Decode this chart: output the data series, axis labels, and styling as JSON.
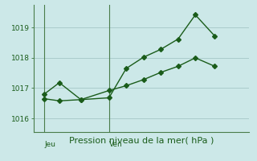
{
  "title": "Pression niveau de la mer( hPa )",
  "background_color": "#cce8e8",
  "plot_bg_color": "#cce8e8",
  "grid_color": "#aacccc",
  "line_color": "#1a5c1a",
  "spine_color": "#4a7c4a",
  "ylim": [
    1015.55,
    1019.75
  ],
  "yticks": [
    1016,
    1017,
    1018,
    1019
  ],
  "xlim": [
    0,
    10
  ],
  "jeu_x": 0.5,
  "ven_x": 3.5,
  "line1_x": [
    0.5,
    1.2,
    2.2,
    3.5,
    4.3,
    5.1,
    5.9,
    6.7,
    7.5,
    8.4
  ],
  "line1_y": [
    1016.8,
    1017.18,
    1016.62,
    1016.68,
    1017.65,
    1018.02,
    1018.28,
    1018.62,
    1019.42,
    1018.72
  ],
  "line2_x": [
    0.5,
    1.2,
    2.2,
    3.5,
    4.3,
    5.1,
    5.9,
    6.7,
    7.5,
    8.4
  ],
  "line2_y": [
    1016.65,
    1016.58,
    1016.62,
    1016.92,
    1017.08,
    1017.28,
    1017.52,
    1017.72,
    1018.0,
    1017.72
  ],
  "marker_size": 3.0,
  "tick_fontsize": 6.5,
  "xlabel_fontsize": 8.0,
  "linewidth": 1.0
}
